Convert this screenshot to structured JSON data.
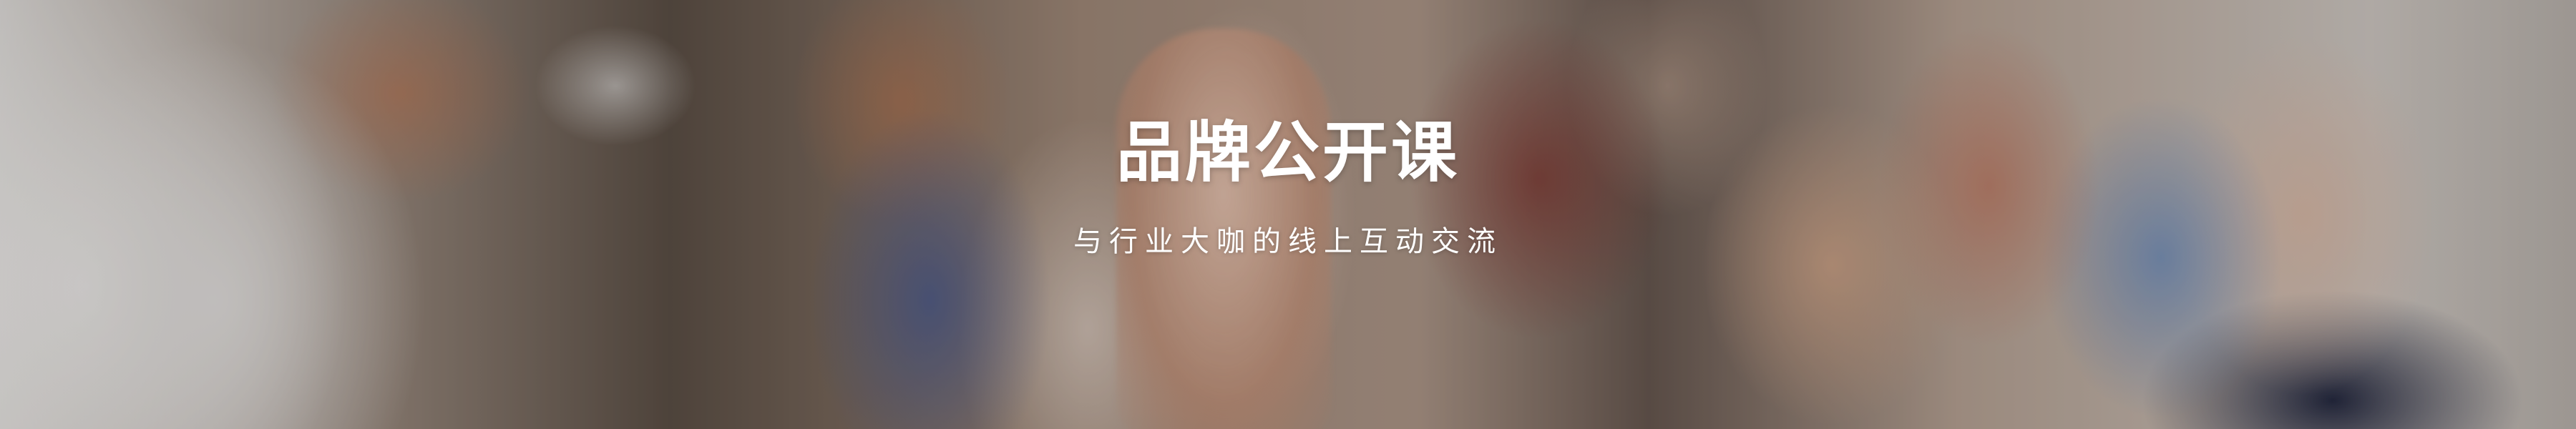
{
  "banner": {
    "title": "品牌公开课",
    "subtitle": "与行业大咖的线上互动交流"
  }
}
